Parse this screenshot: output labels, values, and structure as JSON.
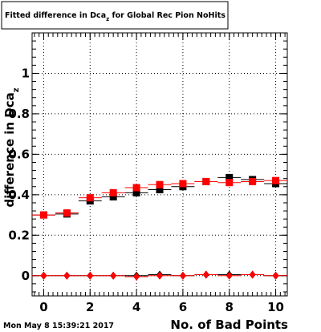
{
  "title_main": "Fitted difference in Dca",
  "title_sub": "z",
  "title_rest": " for Global Rec Pion NoHits",
  "footer": "Mon May  8 15:39:21 2017",
  "colors": {
    "series_black": "#000000",
    "series_red": "#ff0000"
  },
  "chart_data": {
    "type": "scatter",
    "title": "Fitted difference in Dca_z for Global Rec Pion NoHits",
    "xlabel": "No. of Bad Points",
    "ylabel_main": "difference in Dca",
    "ylabel_sub": "z",
    "xlim": [
      -0.5,
      10.5
    ],
    "ylim": [
      -0.1,
      1.2
    ],
    "grid": true,
    "x_ticks": [
      "0",
      "2",
      "4",
      "6",
      "8",
      "10"
    ],
    "y_ticks": [
      "0",
      "0.2",
      "0.4",
      "0.6",
      "0.8",
      "1"
    ],
    "x": [
      0,
      1,
      2,
      3,
      4,
      5,
      6,
      7,
      8,
      9,
      10
    ],
    "series": [
      {
        "marker": "square",
        "color": "#000000",
        "values": [
          0.3,
          0.305,
          0.37,
          0.39,
          0.41,
          0.425,
          0.44,
          0.465,
          0.485,
          0.475,
          0.455
        ]
      },
      {
        "marker": "square",
        "color": "#ff0000",
        "values": [
          0.3,
          0.31,
          0.385,
          0.41,
          0.435,
          0.45,
          0.455,
          0.465,
          0.46,
          0.465,
          0.47
        ]
      },
      {
        "marker": "diamond",
        "color": "#000000",
        "values": [
          0.0,
          0.0,
          0.0,
          0.0,
          0.0,
          0.005,
          0.0,
          0.005,
          0.005,
          0.005,
          0.0
        ]
      },
      {
        "marker": "diamond",
        "color": "#ff0000",
        "values": [
          0.0,
          0.0,
          0.0,
          0.0,
          -0.005,
          0.0,
          0.0,
          0.005,
          0.0,
          0.005,
          0.0
        ]
      }
    ]
  }
}
